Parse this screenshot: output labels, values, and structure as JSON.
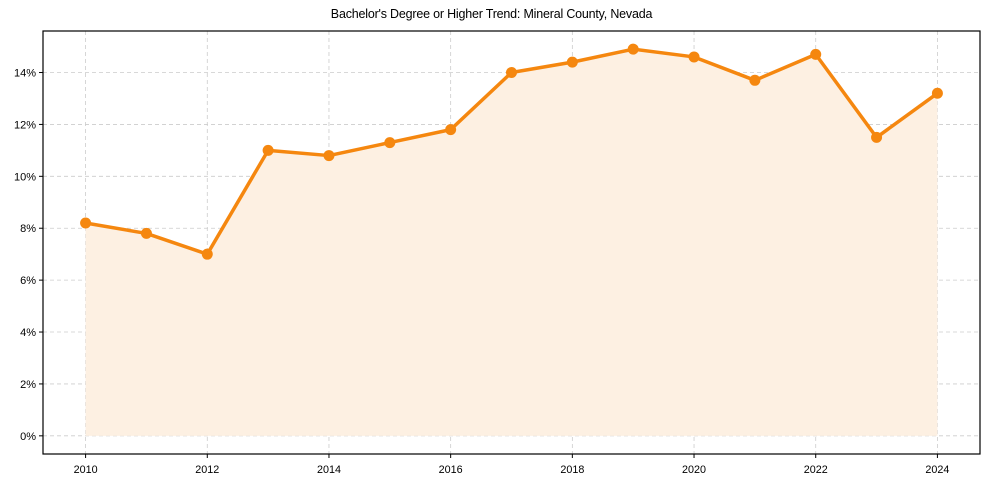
{
  "chart_data": {
    "type": "line",
    "title": "Bachelor's Degree or Higher Trend: Mineral County, Nevada",
    "xlabel": "",
    "ylabel": "",
    "x": [
      2010,
      2011,
      2012,
      2013,
      2014,
      2015,
      2016,
      2017,
      2018,
      2019,
      2020,
      2021,
      2022,
      2023,
      2024
    ],
    "series": [
      {
        "name": "Bachelor's Degree or Higher (%)",
        "values": [
          8.2,
          7.8,
          7.0,
          11.0,
          10.8,
          11.3,
          11.8,
          14.0,
          14.4,
          14.9,
          14.6,
          13.7,
          14.7,
          11.5,
          13.2
        ],
        "color": "#f5870f",
        "fill_color": "#fdf0e2",
        "marker": "circle"
      }
    ],
    "xticks": [
      2010,
      2012,
      2014,
      2016,
      2018,
      2020,
      2022,
      2024
    ],
    "xtick_labels": [
      "2010",
      "2012",
      "2014",
      "2016",
      "2018",
      "2020",
      "2022",
      "2024"
    ],
    "yticks": [
      0,
      2,
      4,
      6,
      8,
      10,
      12,
      14
    ],
    "ytick_labels": [
      "0%",
      "2%",
      "4%",
      "6%",
      "8%",
      "10%",
      "12%",
      "14%"
    ],
    "xlim": [
      2009.3,
      2024.7
    ],
    "ylim": [
      -0.7,
      15.6
    ],
    "grid": true,
    "grid_style": "dashed",
    "legend": null
  }
}
